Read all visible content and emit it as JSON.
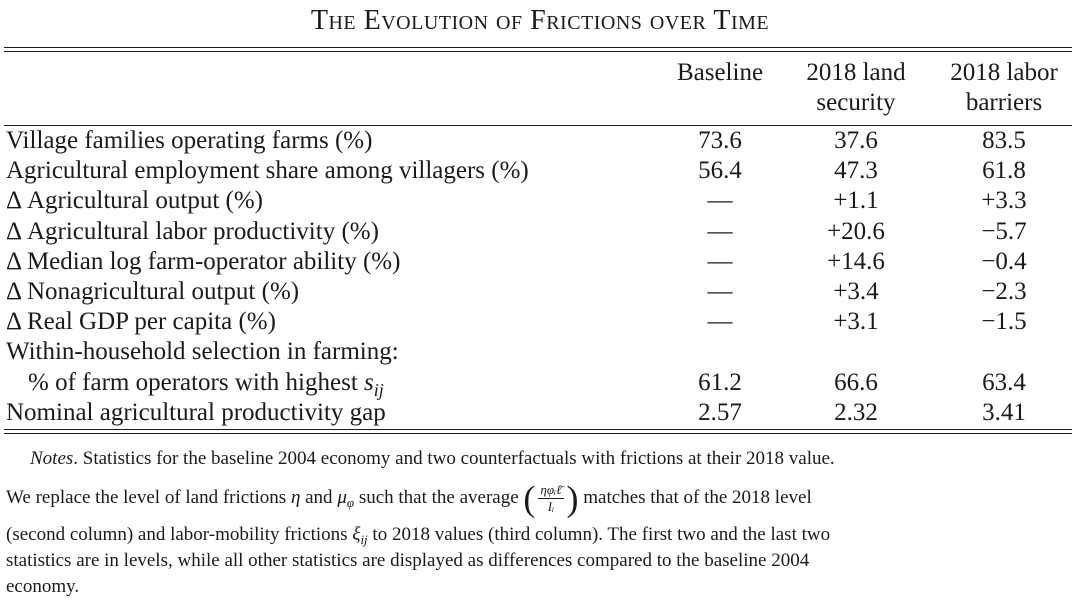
{
  "table": {
    "title": "The Evolution of Frictions over Time",
    "columns": [
      "Baseline",
      "2018 land security",
      "2018 labor barriers"
    ],
    "column_lines": [
      [
        "Baseline",
        ""
      ],
      [
        "2018 land",
        "security"
      ],
      [
        "2018 labor",
        "barriers"
      ]
    ],
    "rows": [
      {
        "label": "Village families operating farms (%)",
        "values": [
          "73.6",
          "37.6",
          "83.5"
        ]
      },
      {
        "label": "Agricultural employment share among villagers (%)",
        "values": [
          "56.4",
          "47.3",
          "61.8"
        ]
      },
      {
        "label": "Δ Agricultural output (%)",
        "values": [
          "—",
          "+1.1",
          "+3.3"
        ]
      },
      {
        "label": "Δ Agricultural labor productivity (%)",
        "values": [
          "—",
          "+20.6",
          "−5.7"
        ]
      },
      {
        "label": "Δ Median log farm-operator ability (%)",
        "values": [
          "—",
          "+14.6",
          "−0.4"
        ]
      },
      {
        "label": "Δ Nonagricultural output (%)",
        "values": [
          "—",
          "+3.4",
          "−2.3"
        ]
      },
      {
        "label": "Δ Real GDP per capita (%)",
        "values": [
          "—",
          "+3.1",
          "−1.5"
        ]
      },
      {
        "label": "Within-household selection in farming:",
        "values": [
          "",
          "",
          ""
        ]
      },
      {
        "label": "% of farm operators with highest ",
        "label_sym": "s",
        "label_sub": "ij",
        "values": [
          "61.2",
          "66.6",
          "63.4"
        ]
      },
      {
        "label": "Nominal agricultural productivity gap",
        "values": [
          "2.57",
          "2.32",
          "3.41"
        ]
      }
    ]
  },
  "notes": {
    "lead": "Notes",
    "line1": ". Statistics for the baseline 2004 economy and two counterfactuals with frictions at their 2018 value.",
    "line2_a": "We replace the level of land frictions ",
    "sym_eta": "η",
    "line2_b": " and ",
    "sym_mu": "μ",
    "sym_mu_sub": "φ",
    "line2_c": " such that the average ",
    "frac_num": "ηφᵢℓ̄",
    "frac_den": "Iᵢ",
    "line2_d": " matches that of the 2018 level",
    "line3_a": "(second column) and labor-mobility frictions ",
    "sym_xi": "ξ",
    "sym_xi_sub": "ij",
    "line3_b": " to 2018 values (third column). The first two and the last two",
    "line4": "statistics are in levels, while all other statistics are displayed as differences compared to the baseline 2004",
    "line5": "economy."
  }
}
